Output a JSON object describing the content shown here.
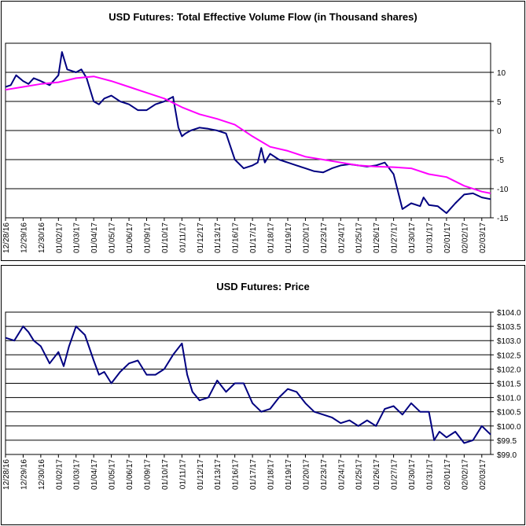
{
  "chart_data": [
    {
      "type": "line",
      "title": "USD Futures: Total Effective Volume Flow (in Thousand shares)",
      "xlabel": "",
      "ylabel": "",
      "x_tick_labels": [
        "12/28/16",
        "12/29/16",
        "12/30/16",
        "01/02/17",
        "01/03/17",
        "01/04/17",
        "01/05/17",
        "01/06/17",
        "01/09/17",
        "01/10/17",
        "01/11/17",
        "01/12/17",
        "01/13/17",
        "01/16/17",
        "01/17/17",
        "01/18/17",
        "01/19/17",
        "01/20/17",
        "01/23/17",
        "01/24/17",
        "01/25/17",
        "01/26/17",
        "01/27/17",
        "01/30/17",
        "01/31/17",
        "02/01/17",
        "02/02/17",
        "02/03/17"
      ],
      "y_tick_labels": [
        "10",
        "5",
        "0",
        "-5",
        "-10",
        "-15"
      ],
      "y_ticks": [
        10,
        5,
        0,
        -5,
        -10,
        -15
      ],
      "ylim": [
        -15,
        15
      ],
      "grid": true,
      "series": [
        {
          "color": "#000080",
          "x": [
            0,
            0.3,
            0.6,
            1.0,
            1.3,
            1.6,
            2.0,
            2.5,
            3.0,
            3.2,
            3.5,
            4.0,
            4.3,
            4.6,
            5.0,
            5.3,
            5.6,
            6.0,
            6.5,
            7.0,
            7.5,
            8.0,
            8.5,
            9.0,
            9.5,
            9.8,
            10.0,
            10.2,
            10.5,
            11.0,
            11.5,
            12.0,
            12.5,
            13.0,
            13.5,
            14.0,
            14.3,
            14.5,
            14.7,
            15.0,
            15.5,
            16.0,
            16.5,
            17.0,
            17.5,
            18.0,
            18.5,
            19.0,
            19.5,
            20.0,
            20.5,
            21.0,
            21.5,
            22.0,
            22.5,
            23.0,
            23.5,
            23.7,
            24.0,
            24.5,
            25.0,
            25.5,
            26.0,
            26.5,
            27.0,
            27.5
          ],
          "y": [
            7.5,
            7.8,
            9.5,
            8.5,
            8.0,
            9.0,
            8.5,
            7.8,
            9.5,
            13.5,
            10.5,
            10.0,
            10.5,
            9.0,
            5.0,
            4.5,
            5.5,
            6.0,
            5.0,
            4.5,
            3.5,
            3.5,
            4.5,
            5.0,
            5.8,
            0.5,
            -1.0,
            -0.5,
            0.0,
            0.5,
            0.3,
            0.0,
            -0.5,
            -5.0,
            -6.5,
            -6.0,
            -5.5,
            -3.0,
            -5.5,
            -4.0,
            -5.0,
            -5.5,
            -6.0,
            -6.5,
            -7.0,
            -7.2,
            -6.5,
            -6.0,
            -5.8,
            -6.0,
            -6.2,
            -6.0,
            -5.5,
            -7.5,
            -13.5,
            -12.5,
            -13.0,
            -11.5,
            -12.8,
            -13.0,
            -14.2,
            -12.5,
            -11.0,
            -10.8,
            -11.5,
            -11.8
          ]
        },
        {
          "color": "#ff00ff",
          "x": [
            0,
            1,
            2,
            3,
            4,
            5,
            6,
            7,
            8,
            9,
            10,
            11,
            12,
            13,
            14,
            15,
            16,
            17,
            18,
            19,
            20,
            21,
            22,
            23,
            24,
            25,
            26,
            27,
            27.5
          ],
          "y": [
            7.0,
            7.5,
            8.0,
            8.3,
            9.0,
            9.3,
            8.5,
            7.5,
            6.5,
            5.5,
            4.0,
            2.8,
            2.0,
            1.0,
            -1.0,
            -2.8,
            -3.5,
            -4.5,
            -5.0,
            -5.5,
            -6.0,
            -6.2,
            -6.3,
            -6.5,
            -7.5,
            -8.0,
            -9.5,
            -10.5,
            -10.8
          ]
        }
      ]
    },
    {
      "type": "line",
      "title": "USD Futures: Price",
      "xlabel": "",
      "ylabel": "",
      "x_tick_labels": [
        "12/28/16",
        "12/29/16",
        "12/30/16",
        "01/02/17",
        "01/03/17",
        "01/04/17",
        "01/05/17",
        "01/06/17",
        "01/09/17",
        "01/10/17",
        "01/11/17",
        "01/12/17",
        "01/13/17",
        "01/16/17",
        "01/17/17",
        "01/18/17",
        "01/19/17",
        "01/20/17",
        "01/23/17",
        "01/24/17",
        "01/25/17",
        "01/26/17",
        "01/27/17",
        "01/30/17",
        "01/31/17",
        "02/01/17",
        "02/02/17",
        "02/03/17"
      ],
      "y_tick_labels": [
        "$104.0",
        "$103.5",
        "$103.0",
        "$102.5",
        "$102.0",
        "$101.5",
        "$101.0",
        "$100.5",
        "$100.0",
        "$99.5",
        "$99.0"
      ],
      "y_ticks": [
        104.0,
        103.5,
        103.0,
        102.5,
        102.0,
        101.5,
        101.0,
        100.5,
        100.0,
        99.5,
        99.0
      ],
      "ylim": [
        99.0,
        104.0
      ],
      "grid": true,
      "series": [
        {
          "color": "#000080",
          "x": [
            0,
            0.5,
            1.0,
            1.3,
            1.6,
            2.0,
            2.5,
            3.0,
            3.3,
            3.6,
            4.0,
            4.5,
            5.0,
            5.3,
            5.6,
            6.0,
            6.5,
            7.0,
            7.5,
            8.0,
            8.5,
            9.0,
            9.5,
            10.0,
            10.3,
            10.6,
            11.0,
            11.5,
            12.0,
            12.5,
            13.0,
            13.5,
            14.0,
            14.5,
            15.0,
            15.5,
            16.0,
            16.5,
            17.0,
            17.5,
            18.0,
            18.5,
            19.0,
            19.5,
            20.0,
            20.5,
            21.0,
            21.5,
            22.0,
            22.5,
            23.0,
            23.5,
            24.0,
            24.3,
            24.6,
            25.0,
            25.5,
            26.0,
            26.5,
            27.0,
            27.5
          ],
          "y": [
            103.1,
            103.0,
            103.5,
            103.3,
            103.0,
            102.8,
            102.2,
            102.6,
            102.1,
            102.8,
            103.5,
            103.2,
            102.3,
            101.8,
            101.9,
            101.5,
            101.9,
            102.2,
            102.3,
            101.8,
            101.8,
            102.0,
            102.5,
            102.9,
            101.8,
            101.2,
            100.9,
            101.0,
            101.6,
            101.2,
            101.5,
            101.5,
            100.8,
            100.5,
            100.6,
            101.0,
            101.3,
            101.2,
            100.8,
            100.5,
            100.4,
            100.3,
            100.1,
            100.2,
            100.0,
            100.2,
            100.0,
            100.6,
            100.7,
            100.4,
            100.8,
            100.5,
            100.5,
            99.5,
            99.8,
            99.6,
            99.8,
            99.4,
            99.5,
            100.0,
            99.7
          ]
        }
      ]
    }
  ]
}
